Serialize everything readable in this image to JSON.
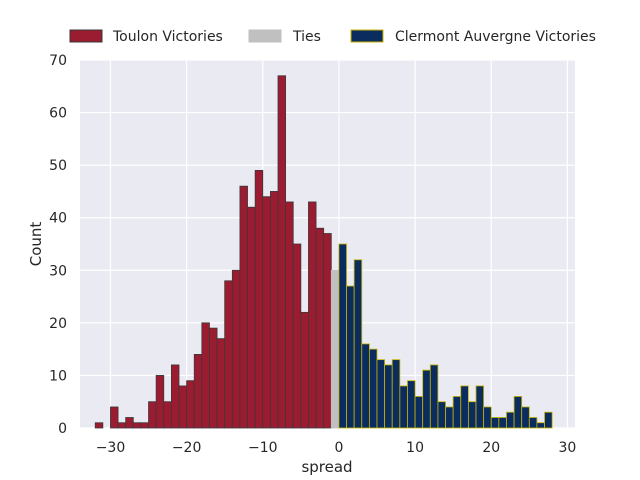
{
  "chart_data": {
    "type": "bar",
    "xlabel": "spread",
    "ylabel": "Count",
    "xlim": [
      -34,
      31
    ],
    "ylim": [
      0,
      70
    ],
    "x_ticks": [
      -30,
      -20,
      -10,
      0,
      10,
      20,
      30
    ],
    "x_tick_labels": [
      "−30",
      "−20",
      "−10",
      "0",
      "10",
      "20",
      "30"
    ],
    "y_ticks": [
      0,
      10,
      20,
      30,
      40,
      50,
      60,
      70
    ],
    "grid": true,
    "legend_position": "top, above plot",
    "bin_width": 1,
    "series": [
      {
        "name": "Toulon Victories",
        "color": "#9b1b30",
        "edge_color": "#3a3a3a",
        "x": [
          -32,
          -31,
          -30,
          -29,
          -28,
          -27,
          -26,
          -25,
          -24,
          -23,
          -22,
          -21,
          -20,
          -19,
          -18,
          -17,
          -16,
          -15,
          -14,
          -13,
          -12,
          -11,
          -10,
          -9,
          -8,
          -7,
          -6,
          -5,
          -4,
          -3,
          -2,
          -1
        ],
        "values": [
          1,
          0,
          4,
          1,
          2,
          1,
          1,
          5,
          10,
          5,
          12,
          8,
          9,
          14,
          20,
          19,
          17,
          28,
          30,
          46,
          42,
          49,
          44,
          45,
          67,
          43,
          35,
          22,
          43,
          38,
          37,
          0
        ]
      },
      {
        "name": "Ties",
        "color": "#c0c0c0",
        "edge_color": "#c0c0c0",
        "x": [
          -1
        ],
        "values": [
          30
        ]
      },
      {
        "name": "Clermont Auvergne Victories",
        "color": "#0b2c5e",
        "edge_color": "#c8b400",
        "x": [
          0,
          1,
          2,
          3,
          4,
          5,
          6,
          7,
          8,
          9,
          10,
          11,
          12,
          13,
          14,
          15,
          16,
          17,
          18,
          19,
          20,
          21,
          22,
          23,
          24,
          25,
          26,
          27
        ],
        "values": [
          35,
          27,
          32,
          16,
          15,
          13,
          12,
          13,
          8,
          9,
          6,
          11,
          12,
          5,
          4,
          6,
          8,
          5,
          8,
          4,
          2,
          2,
          3,
          6,
          4,
          2,
          1,
          3
        ]
      }
    ]
  }
}
